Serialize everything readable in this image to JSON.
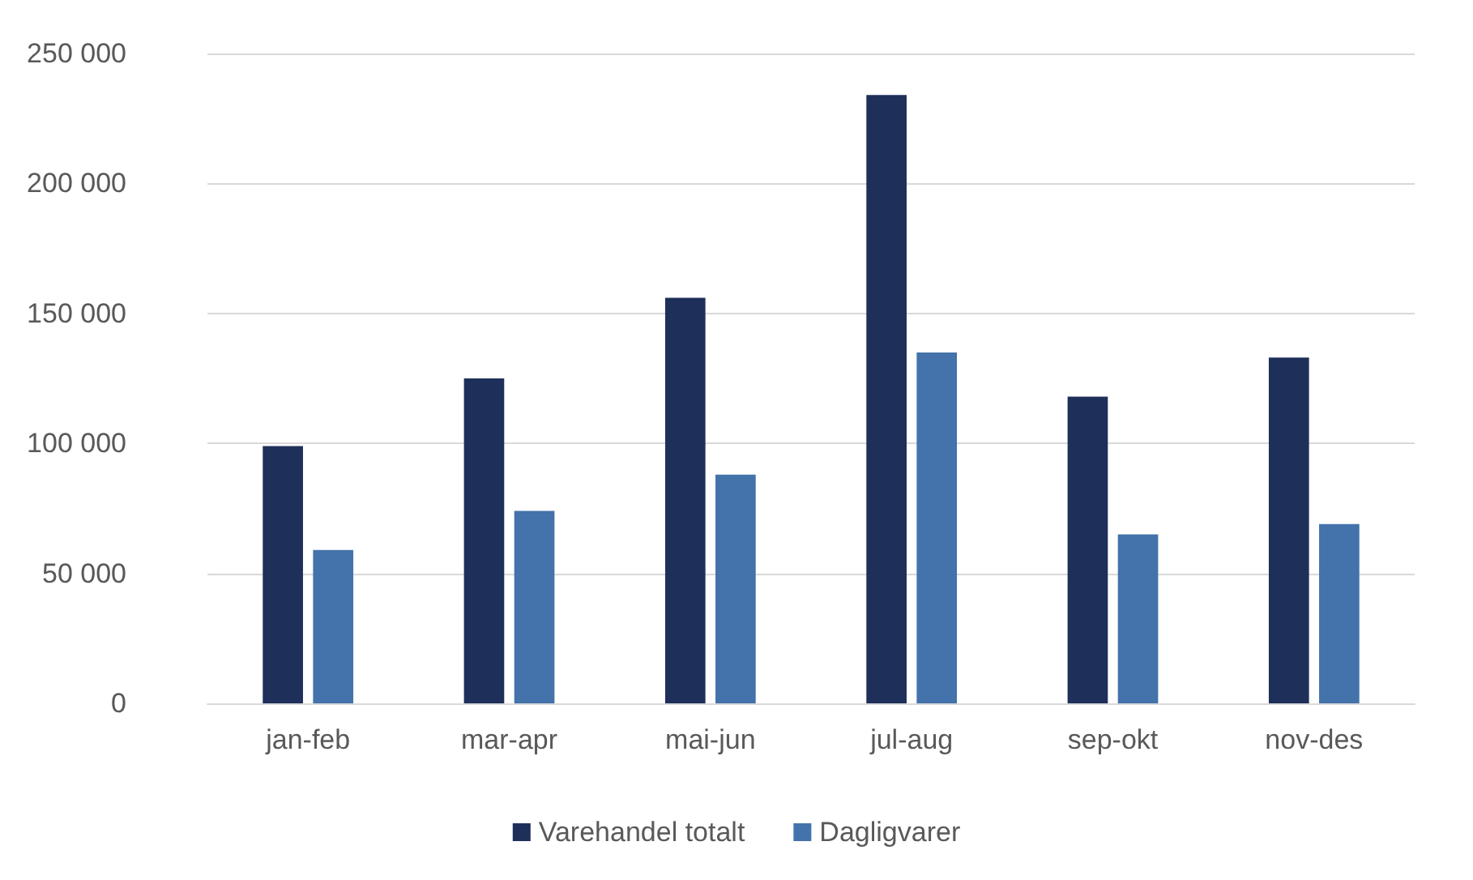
{
  "chart_data": {
    "type": "bar",
    "categories": [
      "jan-feb",
      "mar-apr",
      "mai-jun",
      "jul-aug",
      "sep-okt",
      "nov-des"
    ],
    "series": [
      {
        "name": "Varehandel totalt",
        "color": "#1e2f5a",
        "values": [
          99000,
          125000,
          156000,
          234000,
          118000,
          133000
        ]
      },
      {
        "name": "Dagligvarer",
        "color": "#4472aa",
        "values": [
          59000,
          74000,
          88000,
          135000,
          65000,
          69000
        ]
      }
    ],
    "ylim": [
      0,
      250000
    ],
    "yticks": [
      {
        "value": 0,
        "label": "0"
      },
      {
        "value": 50000,
        "label": "50 000"
      },
      {
        "value": 100000,
        "label": "100 000"
      },
      {
        "value": 150000,
        "label": "150 000"
      },
      {
        "value": 200000,
        "label": "200 000"
      },
      {
        "value": 250000,
        "label": "250 000"
      }
    ],
    "grid": "y",
    "legend": "bottom"
  }
}
